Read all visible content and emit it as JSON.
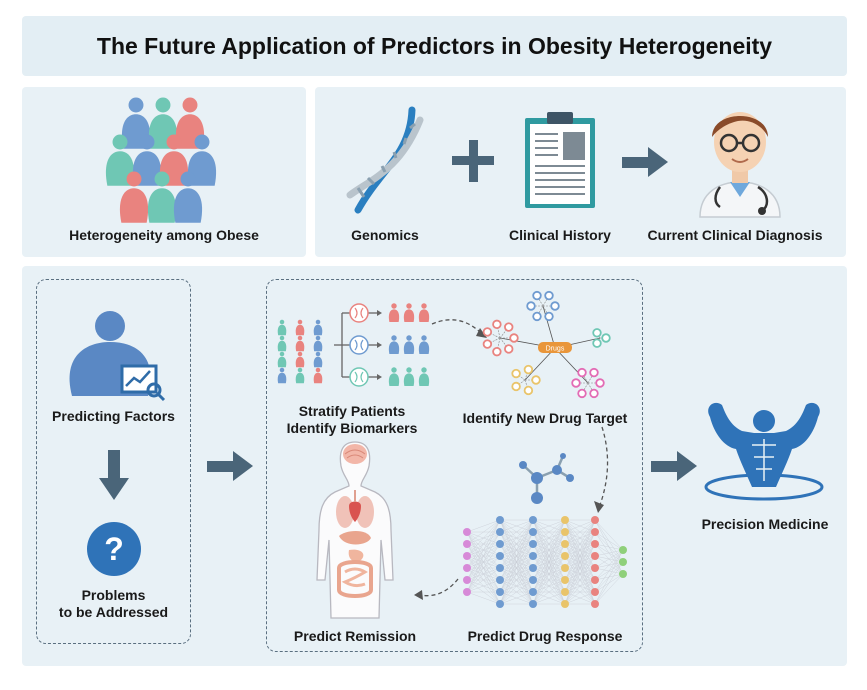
{
  "title": "The Future Application of Predictors in Obesity Heterogeneity",
  "top_left": {
    "label": "Heterogeneity among Obese"
  },
  "top_right": {
    "genomics": "Genomics",
    "clinical_history": "Clinical History",
    "current_diagnosis": "Current Clinical Diagnosis"
  },
  "left_box": {
    "predicting_factors": "Predicting Factors",
    "problems_line1": "Problems",
    "problems_line2": "to be Addressed"
  },
  "center_box": {
    "stratify_line1": "Stratify Patients",
    "stratify_line2": "Identify Biomarkers",
    "drug_target": "Identify New Drug Target",
    "predict_remission": "Predict Remission",
    "predict_drug_response": "Predict Drug Response",
    "drugs_node": "Drugs"
  },
  "right": {
    "precision_medicine": "Precision Medicine"
  },
  "colors": {
    "blue": "#6f9bd0",
    "teal": "#6fc7b4",
    "pink": "#e9837f",
    "arrow": "#4a6579",
    "dark_blue": "#2f6ca8"
  }
}
